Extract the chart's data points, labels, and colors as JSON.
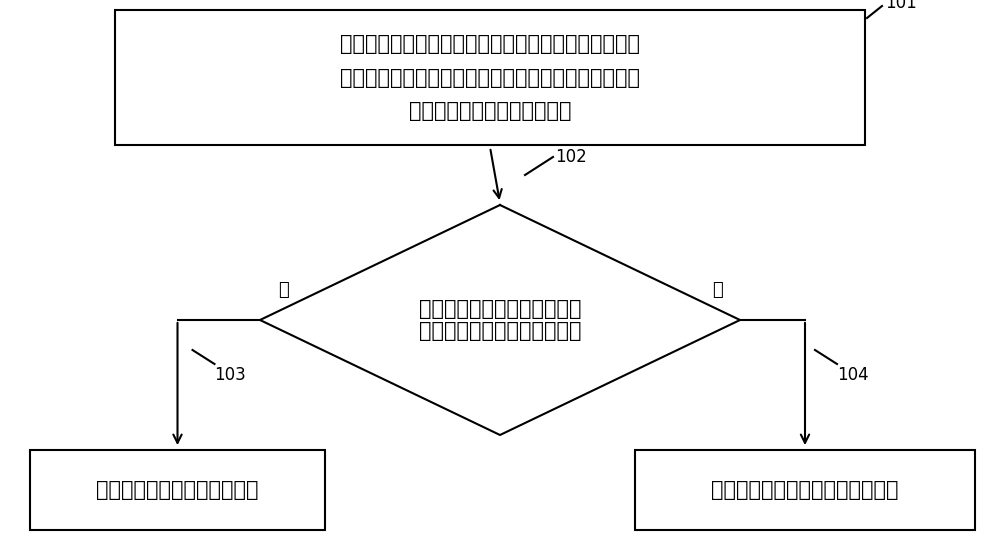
{
  "bg_color": "#ffffff",
  "line_color": "#000000",
  "text_color": "#000000",
  "box1_text_lines": [
    "当接收到第一移动终端的登录请求时，获取第一移动终",
    "端的一次性验证码，一次性验证码由第一移动终端的唯",
    "一特征信息和当前时间戳生成"
  ],
  "box1_label": "101",
  "diamond_text_lines": [
    "判断一次性验证码与所述关联",
    "信息的误差是否在预置阈值内"
  ],
  "diamond_label": "102",
  "box3_text": "分配登录权限给第一移动终端",
  "box3_label": "103",
  "box4_text": "发送拒绝登录信息给第一移动终端",
  "box4_label": "104",
  "yes_text": "是",
  "no_text": "否"
}
